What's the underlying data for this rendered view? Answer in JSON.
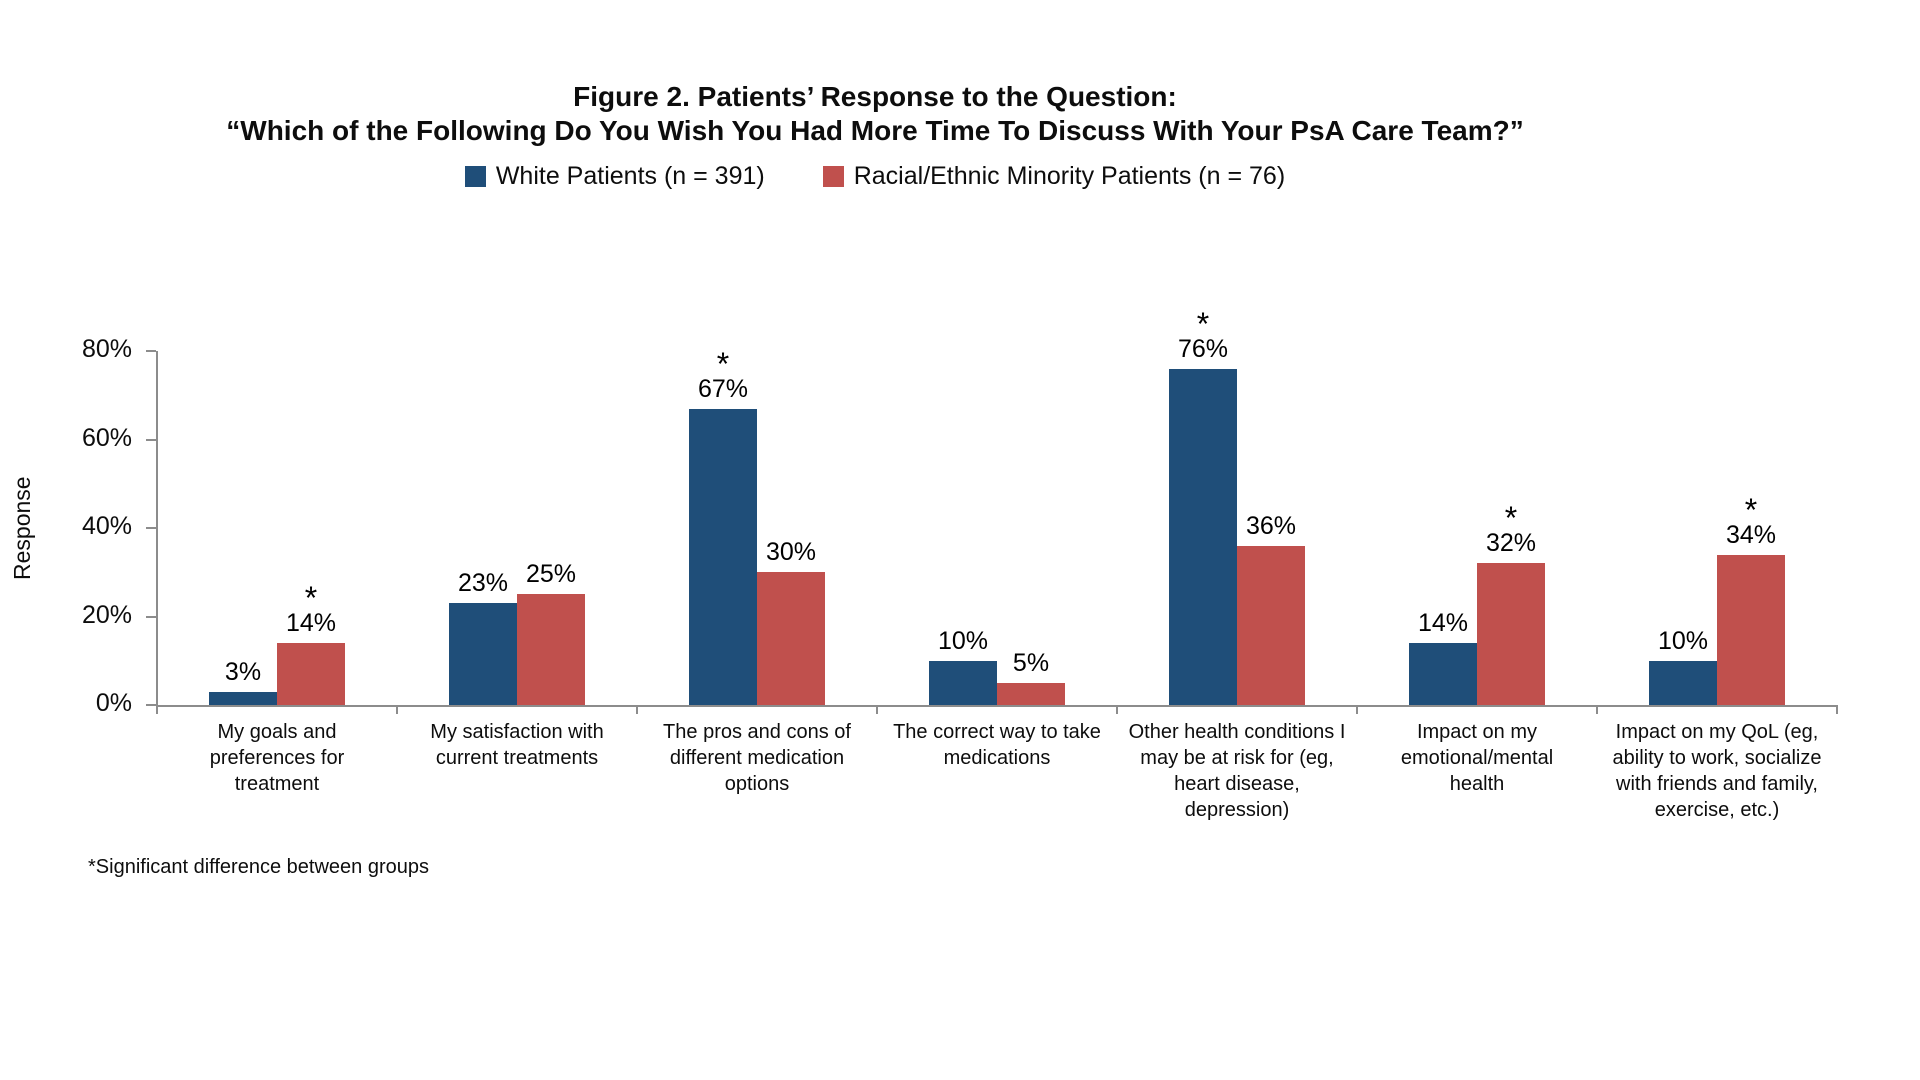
{
  "title": {
    "line1": "Figure 2. Patients’ Response to the Question:",
    "line2": "“Which of the Following Do You Wish You Had More Time To Discuss With Your PsA Care Team?”"
  },
  "footnote": "*Significant difference between groups",
  "colors": {
    "white_patients": "#1F4E79",
    "minority_patients": "#C0504D",
    "axis": "#8c8c8c"
  },
  "chart_data": {
    "type": "bar",
    "title": "Figure 2. Patients’ Response to the Question: “Which of the Following Do You Wish You Had More Time To Discuss With Your PsA Care Team?”",
    "xlabel": "",
    "ylabel": "Response",
    "ylim": [
      0,
      80
    ],
    "yticks": [
      "0%",
      "20%",
      "40%",
      "60%",
      "80%"
    ],
    "grid": false,
    "legend_position": "top",
    "significance_marker": "*",
    "categories": [
      "My goals and preferences for treatment",
      "My satisfaction with current treatments",
      "The pros and cons of different medication options",
      "The correct way to take medications",
      "Other health conditions I may be at risk for (eg, heart disease, depression)",
      "Impact on my emotional/mental health",
      "Impact on my QoL (eg, ability to work, socialize with friends and family, exercise, etc.)"
    ],
    "series": [
      {
        "name": "White Patients (n = 391)",
        "color": "#1F4E79",
        "values": [
          3,
          23,
          67,
          10,
          76,
          14,
          10
        ],
        "labels": [
          "3%",
          "23%",
          "67%",
          "10%",
          "76%",
          "14%",
          "10%"
        ],
        "significant": [
          false,
          false,
          true,
          false,
          true,
          false,
          false
        ]
      },
      {
        "name": "Racial/Ethnic Minority Patients (n = 76)",
        "color": "#C0504D",
        "values": [
          14,
          25,
          30,
          5,
          36,
          32,
          34
        ],
        "labels": [
          "14%",
          "25%",
          "30%",
          "5%",
          "36%",
          "32%",
          "34%"
        ],
        "significant": [
          true,
          false,
          false,
          false,
          false,
          true,
          true
        ]
      }
    ]
  }
}
